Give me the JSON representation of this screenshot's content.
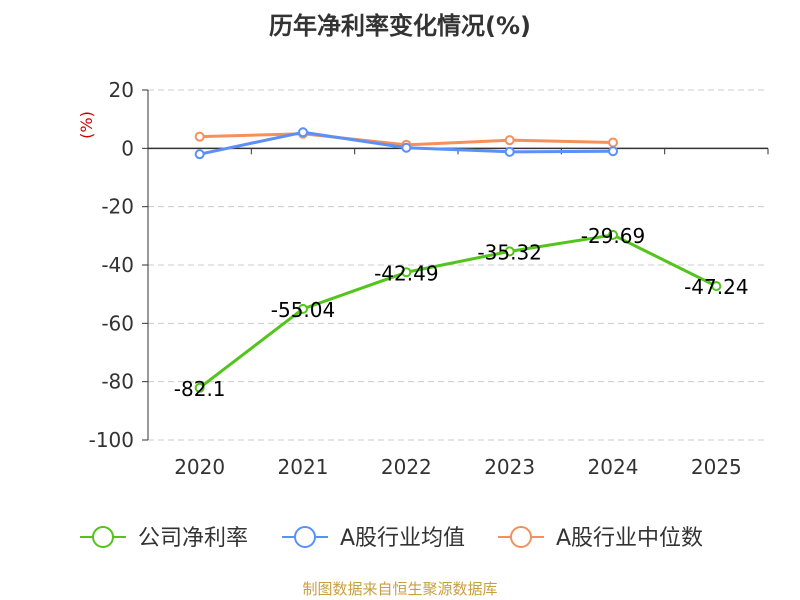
{
  "chart_data": {
    "type": "line",
    "title": "历年净利率变化情况(%)",
    "unit": "(%)",
    "categories": [
      "2020",
      "2021",
      "2022",
      "2023",
      "2024",
      "2025"
    ],
    "ylim": [
      -100,
      20
    ],
    "yticks": [
      20,
      0,
      -20,
      -40,
      -60,
      -80,
      -100
    ],
    "grid": true,
    "legend_position": "bottom",
    "series": [
      {
        "name": "公司净利率",
        "color": "#52c41a",
        "values": [
          -82.1,
          -55.04,
          -42.49,
          -35.32,
          -29.69,
          -47.24
        ],
        "labels": [
          "-82.1",
          "-55.04",
          "-42.49",
          "-35.32",
          "-29.69",
          "-47.24"
        ]
      },
      {
        "name": "A股行业均值",
        "color": "#5b8ff9",
        "values": [
          -2,
          5.5,
          0.2,
          -1.2,
          -1,
          null
        ]
      },
      {
        "name": "A股行业中位数",
        "color": "#f6905a",
        "values": [
          4,
          5,
          1.2,
          2.8,
          2,
          null
        ]
      }
    ]
  },
  "footer": {
    "source": "制图数据来自恒生聚源数据库"
  },
  "colors": {
    "unit": "#cc0000",
    "grid": "#cccccc",
    "axis": "#333333"
  }
}
